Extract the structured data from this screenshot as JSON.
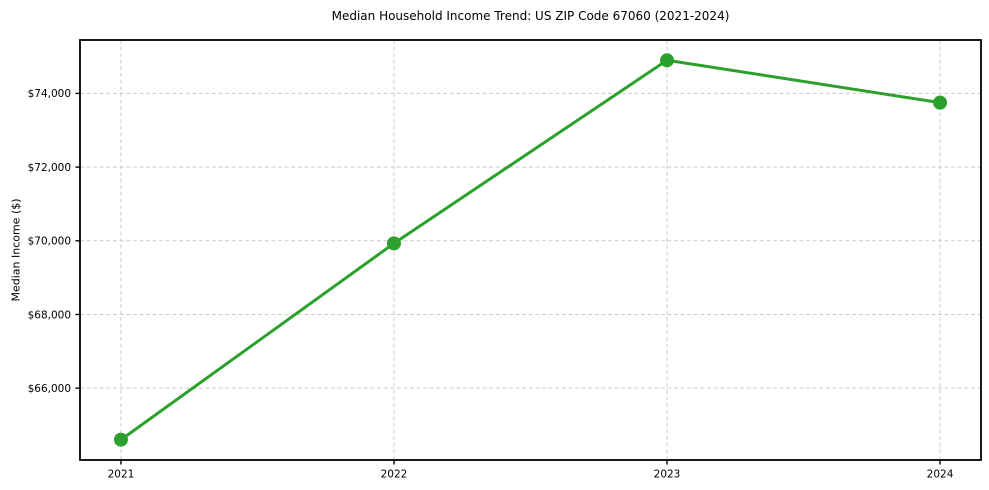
{
  "chart_data": {
    "type": "line",
    "title": "Median Household Income Trend: US ZIP Code 67060 (2021-2024)",
    "xlabel": "",
    "ylabel": "Median Income ($)",
    "x": [
      2021,
      2022,
      2023,
      2024
    ],
    "series": [
      {
        "name": "Median Household Income",
        "values": [
          64600,
          69930,
          74900,
          73750
        ]
      }
    ],
    "x_tick_labels": [
      "2021",
      "2022",
      "2023",
      "2024"
    ],
    "y_ticks": [
      66000,
      68000,
      70000,
      72000,
      74000
    ],
    "y_tick_labels": [
      "$66,000",
      "$68,000",
      "$70,000",
      "$72,000",
      "$74,000"
    ],
    "xlim": [
      2020.85,
      2024.15
    ],
    "ylim": [
      64050,
      75450
    ],
    "grid": true,
    "grid_style": "dashed",
    "legend_position": "none",
    "colors": {
      "line": "#2ca02c",
      "marker": "#2ca02c",
      "grid": "#cccccc",
      "spine": "#000000",
      "background": "#ffffff"
    }
  }
}
